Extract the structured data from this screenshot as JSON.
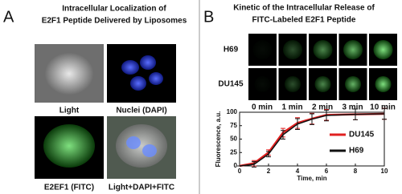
{
  "panel_a": {
    "letter": "A",
    "title_line1": "Intracellular Localization of",
    "title_line2": "E2F1 Peptide Delivered by Liposomes",
    "images": [
      "Light",
      "Nuclei (DAPI)",
      "E2EF1 (FITC)",
      "Light+DAPI+FITC"
    ]
  },
  "panel_b": {
    "letter": "B",
    "title_line1": "Kinetic of the Intracellular Release of",
    "title_line2": "FITC-Labeled E2F1 Peptide",
    "rows": [
      "H69",
      "DU145"
    ],
    "times": [
      "0 min",
      "1 min",
      "2 min",
      "3 min",
      "10 min"
    ]
  },
  "chart_data": {
    "type": "line",
    "xlabel": "Time, min",
    "ylabel": "Fluorescence, a.u.",
    "x": [
      0,
      1,
      2,
      3,
      4,
      5,
      6,
      8,
      10
    ],
    "xlim": [
      0,
      10
    ],
    "xticks": [
      0,
      2,
      4,
      6,
      8,
      10
    ],
    "ylim": [
      0,
      100
    ],
    "yticks": [
      0,
      25,
      50,
      75,
      100
    ],
    "legend": "right",
    "series": [
      {
        "name": "DU145",
        "color": "#e02020",
        "values": [
          0,
          5,
          25,
          62,
          80,
          88,
          95,
          96,
          97
        ],
        "errors": [
          0,
          5,
          5,
          8,
          10,
          10,
          10,
          10,
          10
        ]
      },
      {
        "name": "H69",
        "color": "#111111",
        "values": [
          0,
          3,
          22,
          58,
          78,
          87,
          94,
          96,
          97
        ],
        "errors": [
          0,
          5,
          5,
          8,
          10,
          10,
          10,
          10,
          10
        ]
      }
    ]
  }
}
